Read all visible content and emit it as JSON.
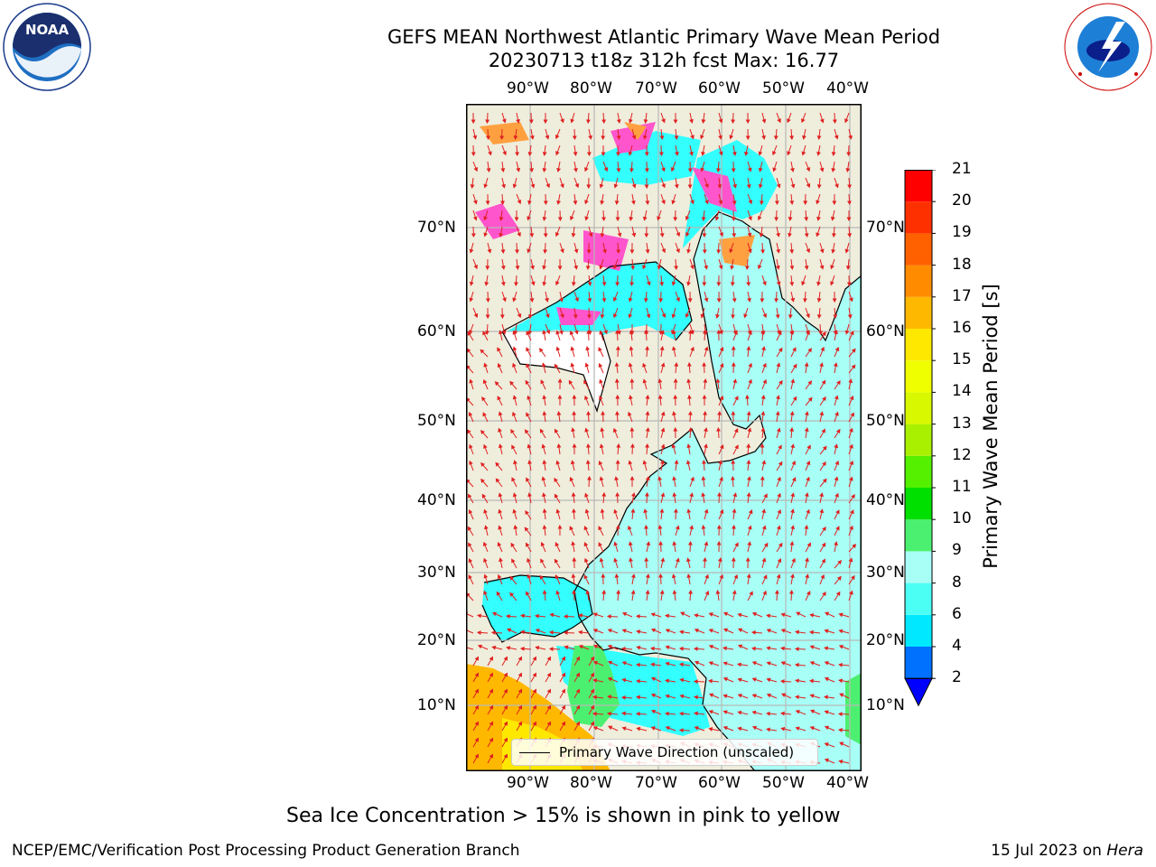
{
  "header": {
    "title_line1": "GEFS MEAN Northwest Atlantic Primary Wave Mean Period",
    "title_line2": "20230713 t18z 312h fcst   Max: 16.77"
  },
  "logos": {
    "left": {
      "text": "NOAA",
      "ring_text": "NATIONAL OCEANIC AND ATMOSPHERIC ADMINISTRATION · U.S. DEPARTMENT OF COMMERCE"
    },
    "right": {
      "ring_text": "NATIONAL WEATHER SERVICE"
    }
  },
  "map": {
    "lon_labels": [
      "90°W",
      "80°W",
      "70°W",
      "60°W",
      "50°W",
      "40°W"
    ],
    "lat_labels": [
      "70°N",
      "60°N",
      "50°N",
      "40°N",
      "30°N",
      "20°N",
      "10°N"
    ],
    "colors": {
      "land": "#efeddc",
      "ocean_main": "#a8fff6",
      "ocean_cyan": "#33ffff",
      "arrow": "#e02020",
      "grid": "#b8b8b8"
    },
    "legend_label": "Primary Wave Direction (unscaled)"
  },
  "colorbar": {
    "label": "Primary Wave Mean Period [s]",
    "ticks": [
      "2",
      "4",
      "6",
      "8",
      "9",
      "10",
      "11",
      "12",
      "13",
      "14",
      "15",
      "16",
      "17",
      "18",
      "19",
      "20",
      "21"
    ],
    "colors": [
      "#0070ff",
      "#00e8ff",
      "#4cfff5",
      "#a8fff6",
      "#4cf070",
      "#00e000",
      "#55f000",
      "#a8f000",
      "#d8f800",
      "#f0ff00",
      "#ffe800",
      "#ffb800",
      "#ff8c00",
      "#ff6000",
      "#ff3000",
      "#ff0000"
    ],
    "under_color": "#0000ff"
  },
  "caption": "Sea Ice Concentration > 15% is shown in pink to yellow",
  "footer": {
    "left": "NCEP/EMC/Verification Post Processing Product Generation Branch",
    "right_date": "15 Jul 2023 on ",
    "right_host": "Hera"
  }
}
